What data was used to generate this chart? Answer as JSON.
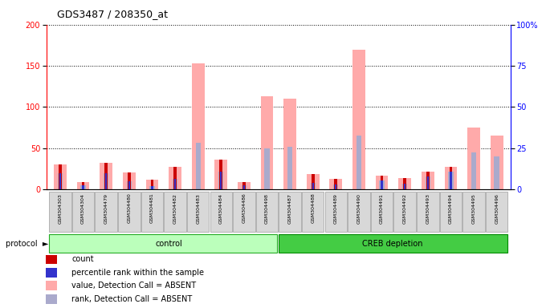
{
  "title": "GDS3487 / 208350_at",
  "samples": [
    "GSM304303",
    "GSM304304",
    "GSM304479",
    "GSM304480",
    "GSM304481",
    "GSM304482",
    "GSM304483",
    "GSM304484",
    "GSM304486",
    "GSM304498",
    "GSM304487",
    "GSM304488",
    "GSM304489",
    "GSM304490",
    "GSM304491",
    "GSM304492",
    "GSM304493",
    "GSM304494",
    "GSM304495",
    "GSM304496"
  ],
  "control_count": 10,
  "value_absent": [
    30,
    9,
    32,
    21,
    12,
    27,
    153,
    36,
    9,
    113,
    110,
    19,
    13,
    170,
    17,
    14,
    22,
    27,
    75,
    65
  ],
  "rank_absent": [
    20,
    5,
    20,
    10,
    4,
    13,
    57,
    22,
    5,
    50,
    52,
    8,
    6,
    65,
    11,
    7,
    16,
    22,
    45,
    40
  ],
  "count_val": [
    30,
    9,
    32,
    21,
    12,
    27,
    0,
    36,
    9,
    0,
    0,
    19,
    13,
    0,
    17,
    14,
    22,
    27,
    0,
    0
  ],
  "percentile_val": [
    20,
    5,
    20,
    10,
    4,
    13,
    0,
    22,
    5,
    0,
    0,
    8,
    6,
    0,
    11,
    7,
    16,
    22,
    0,
    0
  ],
  "ylim_left": [
    0,
    200
  ],
  "ylim_right": [
    0,
    100
  ],
  "yticks_left": [
    0,
    50,
    100,
    150,
    200
  ],
  "yticks_right": [
    0,
    25,
    50,
    75,
    100
  ],
  "color_count": "#cc0000",
  "color_percentile": "#3333cc",
  "color_value_absent": "#ffaaaa",
  "color_rank_absent": "#aaaacc",
  "color_control_bg": "#bbffbb",
  "color_creb_bg": "#44cc44",
  "legend_items": [
    {
      "label": "count",
      "color": "#cc0000"
    },
    {
      "label": "percentile rank within the sample",
      "color": "#3333cc"
    },
    {
      "label": "value, Detection Call = ABSENT",
      "color": "#ffaaaa"
    },
    {
      "label": "rank, Detection Call = ABSENT",
      "color": "#aaaacc"
    }
  ]
}
